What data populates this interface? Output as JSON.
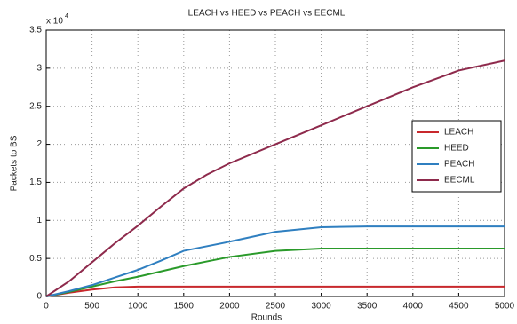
{
  "chart_data": {
    "type": "line",
    "title": "LEACH vs HEED vs PEACH vs EECML",
    "x_label": "Rounds",
    "y_label": "Packets to BS",
    "y_multiplier_base": "x 10",
    "y_multiplier_exp": "4",
    "x": [
      0,
      250,
      500,
      750,
      1000,
      1250,
      1500,
      1750,
      2000,
      2500,
      3000,
      3500,
      4000,
      4500,
      5000
    ],
    "series": [
      {
        "name": "LEACH",
        "color": "#c8282c",
        "values": [
          0,
          0.05,
          0.09,
          0.12,
          0.13,
          0.13,
          0.13,
          0.13,
          0.13,
          0.13,
          0.13,
          0.13,
          0.13,
          0.13,
          0.13
        ]
      },
      {
        "name": "HEED",
        "color": "#2a9a2a",
        "values": [
          0,
          0.06,
          0.13,
          0.2,
          0.26,
          0.33,
          0.4,
          0.46,
          0.52,
          0.6,
          0.63,
          0.63,
          0.63,
          0.63,
          0.63
        ]
      },
      {
        "name": "PEACH",
        "color": "#2f7fc0",
        "values": [
          0,
          0.07,
          0.15,
          0.25,
          0.35,
          0.47,
          0.6,
          0.66,
          0.72,
          0.85,
          0.91,
          0.92,
          0.92,
          0.92,
          0.92
        ]
      },
      {
        "name": "EECML",
        "color": "#8e2a4c",
        "values": [
          0,
          0.2,
          0.45,
          0.7,
          0.93,
          1.18,
          1.42,
          1.6,
          1.75,
          2.0,
          2.25,
          2.5,
          2.75,
          2.97,
          3.1
        ]
      }
    ],
    "xlim": [
      0,
      5000
    ],
    "xticks": [
      0,
      500,
      1000,
      1500,
      2000,
      2500,
      3000,
      3500,
      4000,
      4500,
      5000
    ],
    "ylim": [
      0,
      3.5
    ],
    "yticks": [
      0,
      0.5,
      1,
      1.5,
      2,
      2.5,
      3,
      3.5
    ],
    "grid": true,
    "legend": "east"
  }
}
